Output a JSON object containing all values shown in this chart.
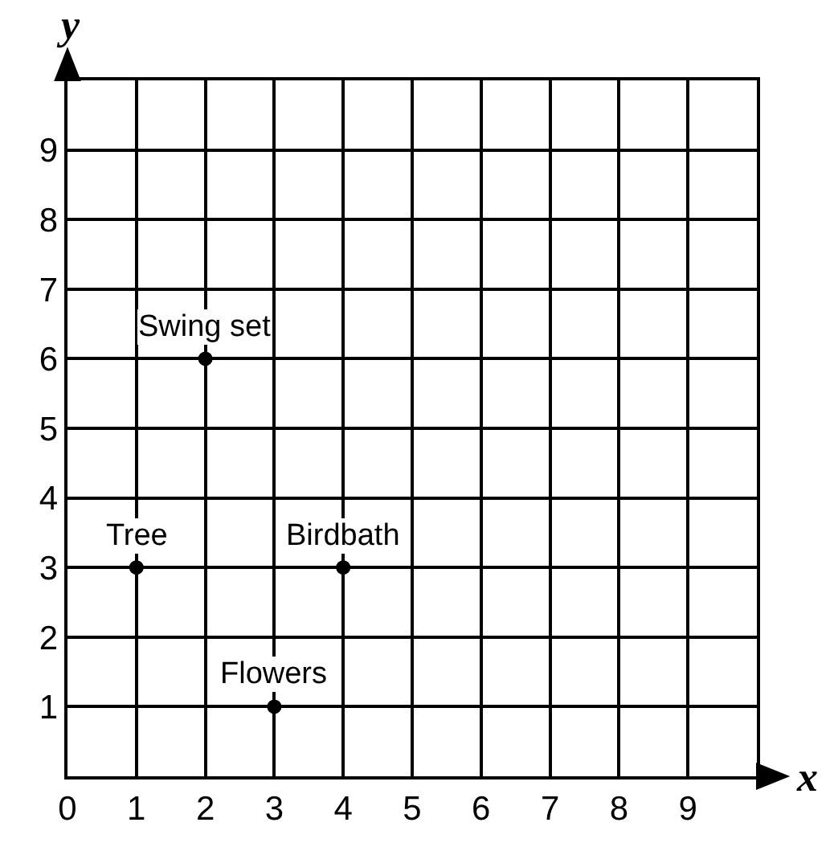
{
  "chart_data": {
    "type": "scatter",
    "xlabel": "x",
    "ylabel": "y",
    "x": [
      1,
      2,
      3,
      4
    ],
    "series": [
      {
        "color": "#000000",
        "values": [
          3,
          6,
          1,
          3
        ]
      }
    ],
    "annotations": [
      {
        "text": "Tree",
        "x": 1,
        "y": 3
      },
      {
        "text": "Swing set",
        "x": 2,
        "y": 6
      },
      {
        "text": "Flowers",
        "x": 3,
        "y": 1
      },
      {
        "text": "Birdbath",
        "x": 4,
        "y": 3
      }
    ],
    "xlim": [
      0,
      10
    ],
    "ylim": [
      0,
      10
    ],
    "xticks": [
      0,
      1,
      2,
      3,
      4,
      5,
      6,
      7,
      8,
      9,
      {
        "value": 10,
        "label": null
      }
    ],
    "yticks": [
      {
        "value": 0,
        "label": null
      },
      1,
      2,
      3,
      4,
      5,
      6,
      7,
      8,
      9,
      {
        "value": 10,
        "label": null
      }
    ],
    "grid": true,
    "marker": "circle"
  }
}
